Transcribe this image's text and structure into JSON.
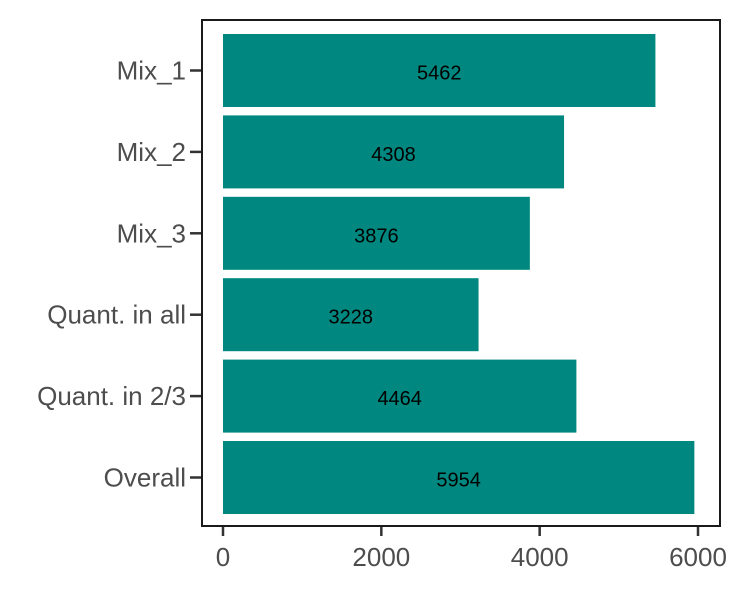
{
  "chart_data": {
    "type": "bar",
    "orientation": "horizontal",
    "categories": [
      "Mix_1",
      "Mix_2",
      "Mix_3",
      "Quant. in all",
      "Quant. in 2/3",
      "Overall"
    ],
    "values": [
      5462,
      4308,
      3876,
      3228,
      4464,
      5954
    ],
    "data_labels": [
      "5462",
      "4308",
      "3876",
      "3228",
      "4464",
      "5954"
    ],
    "xlim": [
      0,
      6000
    ],
    "x_ticks": [
      0,
      2000,
      4000,
      6000
    ],
    "x_tick_labels": [
      "0",
      "2000",
      "4000",
      "6000"
    ],
    "title": "",
    "xlabel": "",
    "ylabel": "",
    "grid": false,
    "bar_color": "#00877f"
  }
}
